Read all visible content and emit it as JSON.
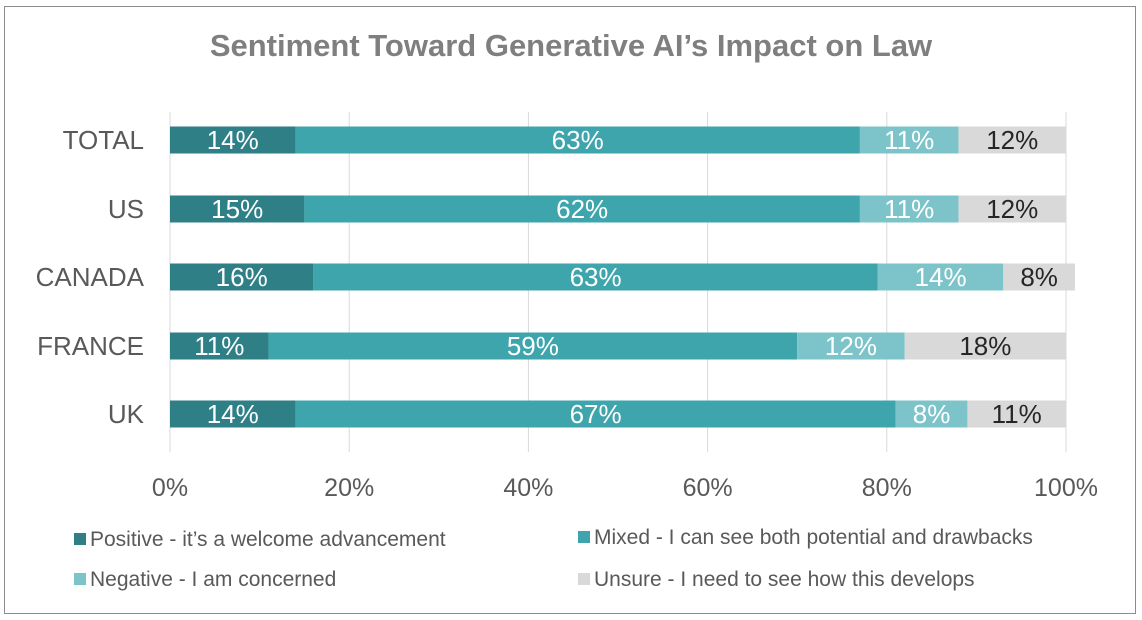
{
  "chart_data": {
    "type": "bar",
    "orientation": "horizontal",
    "stacked": true,
    "title": "Sentiment Toward Generative AI’s Impact on Law",
    "categories": [
      "TOTAL",
      "US",
      "CANADA",
      "FRANCE",
      "UK"
    ],
    "series": [
      {
        "name": "Positive - it’s a welcome advancement",
        "color": "#2f7f87",
        "values": [
          14,
          15,
          16,
          11,
          14
        ],
        "labels": [
          "14%",
          "15%",
          "16%",
          "11%",
          "14%"
        ]
      },
      {
        "name": "Mixed - I can see both potential and drawbacks",
        "color": "#3fa5ad",
        "values": [
          63,
          62,
          63,
          59,
          67
        ],
        "labels": [
          "63%",
          "62%",
          "63%",
          "59%",
          "67%"
        ]
      },
      {
        "name": "Negative - I am concerned",
        "color": "#7dc4ca",
        "values": [
          11,
          11,
          14,
          12,
          8
        ],
        "labels": [
          "11%",
          "11%",
          "14%",
          "12%",
          "8%"
        ]
      },
      {
        "name": "Unsure - I need to see how this develops",
        "color": "#d9d9d9",
        "values": [
          12,
          12,
          8,
          18,
          11
        ],
        "labels": [
          "12%",
          "12%",
          "8%",
          "18%",
          "11%"
        ]
      }
    ],
    "xlim": [
      0,
      100
    ],
    "x_ticks": [
      "0%",
      "20%",
      "40%",
      "60%",
      "80%",
      "100%"
    ],
    "grid": "vertical gridlines",
    "legend_position": "bottom"
  }
}
